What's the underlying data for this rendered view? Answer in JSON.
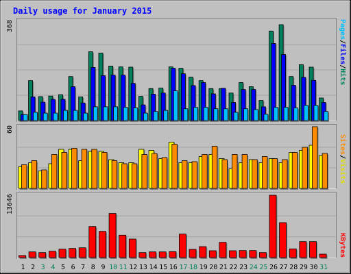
{
  "title": "Daily usage for January 2015",
  "colors": {
    "background": "#c0c0c0",
    "panel": "#bfbfbf",
    "grid": "#a3a3a3",
    "hits": "#00805c",
    "files": "#0000ff",
    "pages": "#00c0ff",
    "visits": "#ffff00",
    "sites": "#ff8c00",
    "kbytes": "#ff0000",
    "title": "#0000ff",
    "weekend": "#00805c"
  },
  "legend_top": {
    "pages": "Pages",
    "files": "Files",
    "hits": "Hits",
    "separator": "/"
  },
  "legend_middle": {
    "sites": "Sites",
    "visits": "Visits",
    "separator": "/"
  },
  "legend_bottom": {
    "kbytes": "KBytes"
  },
  "chart_data": [
    {
      "type": "bar",
      "name": "hits-files-pages",
      "categories": [
        "1",
        "2",
        "3",
        "4",
        "5",
        "6",
        "7",
        "8",
        "9",
        "10",
        "11",
        "12",
        "13",
        "14",
        "15",
        "16",
        "17",
        "18",
        "19",
        "20",
        "21",
        "22",
        "23",
        "24",
        "25",
        "26",
        "27",
        "28",
        "29",
        "30",
        "31"
      ],
      "weekend_days": [
        "3",
        "4",
        "10",
        "11",
        "17",
        "18",
        "24",
        "25",
        "31"
      ],
      "ylabel_max": "368",
      "ylim": [
        0,
        368
      ],
      "series": [
        {
          "name": "Hits",
          "values": [
            35,
            145,
            87,
            89,
            94,
            160,
            86,
            250,
            245,
            198,
            195,
            194,
            88,
            116,
            118,
            195,
            190,
            158,
            145,
            116,
            116,
            100,
            138,
            123,
            73,
            325,
            348,
            160,
            203,
            194,
            82
          ]
        },
        {
          "name": "Files",
          "values": [
            22,
            86,
            67,
            77,
            77,
            123,
            64,
            193,
            163,
            165,
            165,
            135,
            57,
            96,
            100,
            190,
            170,
            127,
            138,
            97,
            117,
            66,
            113,
            113,
            50,
            280,
            240,
            128,
            157,
            146,
            66
          ]
        },
        {
          "name": "Pages",
          "values": [
            22,
            30,
            27,
            27,
            37,
            37,
            27,
            50,
            50,
            50,
            48,
            46,
            27,
            33,
            37,
            108,
            43,
            48,
            48,
            43,
            43,
            30,
            43,
            40,
            23,
            48,
            48,
            46,
            55,
            55,
            33
          ]
        }
      ]
    },
    {
      "type": "bar",
      "name": "visits-sites",
      "categories": [
        "1",
        "2",
        "3",
        "4",
        "5",
        "6",
        "7",
        "8",
        "9",
        "10",
        "11",
        "12",
        "13",
        "14",
        "15",
        "16",
        "17",
        "18",
        "19",
        "20",
        "21",
        "22",
        "23",
        "24",
        "25",
        "26",
        "27",
        "28",
        "29",
        "30",
        "31"
      ],
      "ylabel_max": "60",
      "ylim": [
        0,
        60
      ],
      "series": [
        {
          "name": "Visits",
          "values": [
            21,
            25,
            17,
            24,
            38,
            38,
            27,
            36,
            36,
            28,
            25,
            25,
            38,
            37,
            29,
            45,
            25,
            25,
            31,
            33,
            29,
            19,
            25,
            28,
            25,
            29,
            25,
            35,
            37,
            42,
            32
          ]
        },
        {
          "name": "Sites",
          "values": [
            23,
            27,
            18,
            33,
            35,
            39,
            38,
            38,
            35,
            27,
            24,
            24,
            33,
            34,
            30,
            43,
            27,
            26,
            33,
            41,
            28,
            33,
            33,
            28,
            31,
            29,
            28,
            35,
            40,
            60,
            34
          ]
        }
      ]
    },
    {
      "type": "bar",
      "name": "kbytes",
      "categories": [
        "1",
        "2",
        "3",
        "4",
        "5",
        "6",
        "7",
        "8",
        "9",
        "10",
        "11",
        "12",
        "13",
        "14",
        "15",
        "16",
        "17",
        "18",
        "19",
        "20",
        "21",
        "22",
        "23",
        "24",
        "25",
        "26",
        "27",
        "28",
        "29",
        "30",
        "31"
      ],
      "ylabel_max": "13646",
      "ylim": [
        0,
        13646
      ],
      "series": [
        {
          "name": "KBytes",
          "values": [
            450,
            1250,
            1100,
            1400,
            1850,
            2000,
            2150,
            6800,
            5750,
            9650,
            4900,
            4050,
            1100,
            1250,
            1250,
            1300,
            5150,
            1800,
            2400,
            1500,
            3350,
            1500,
            1550,
            1550,
            1100,
            13646,
            7650,
            1900,
            3500,
            3500,
            750
          ]
        }
      ]
    }
  ]
}
